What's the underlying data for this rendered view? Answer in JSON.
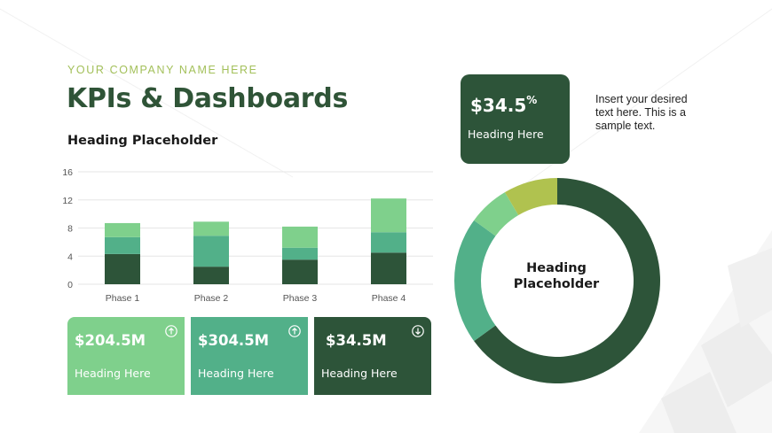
{
  "company": "YOUR COMPANY NAME HERE",
  "title": "KPIs & Dashboards",
  "subheading": "Heading Placeholder",
  "chart_data": [
    {
      "type": "bar",
      "stacked": true,
      "categories": [
        "Phase 1",
        "Phase 2",
        "Phase 3",
        "Phase 4"
      ],
      "series": [
        {
          "values": [
            4.3,
            2.5,
            3.5,
            4.5
          ],
          "color": "#2d5439"
        },
        {
          "values": [
            2.4,
            4.4,
            1.7,
            2.9
          ],
          "color": "#52b089"
        },
        {
          "values": [
            2.0,
            2.0,
            3.0,
            4.8
          ],
          "color": "#7fd08c"
        }
      ],
      "yticks": [
        0,
        4,
        8,
        12,
        16
      ],
      "ylim": [
        0,
        16
      ],
      "grid": true
    },
    {
      "type": "pie",
      "hole": true,
      "values": [
        65,
        20,
        6.5,
        8.5
      ],
      "colors": [
        "#2d5439",
        "#52b089",
        "#7fd08c",
        "#b0c24f"
      ],
      "center_label": [
        "Heading",
        "Placeholder"
      ]
    }
  ],
  "kpis": [
    {
      "value": "$204.5M",
      "label": "Heading Here",
      "icon": "arrow-up-circle-icon"
    },
    {
      "value": "$304.5M",
      "label": "Heading Here",
      "icon": "arrow-up-circle-icon"
    },
    {
      "value": "$34.5M",
      "label": "Heading Here",
      "icon": "arrow-down-circle-icon"
    }
  ],
  "kpi_top": {
    "value": "$34.5",
    "suffix": "%",
    "label": "Heading Here"
  },
  "side_text": "Insert your desired text here. This is a sample text.",
  "colors": {
    "dark_green": "#2d5439",
    "mid_green": "#52b089",
    "light_green": "#7fd08c",
    "olive": "#b0c24f",
    "company_accent": "#a3c05a"
  }
}
